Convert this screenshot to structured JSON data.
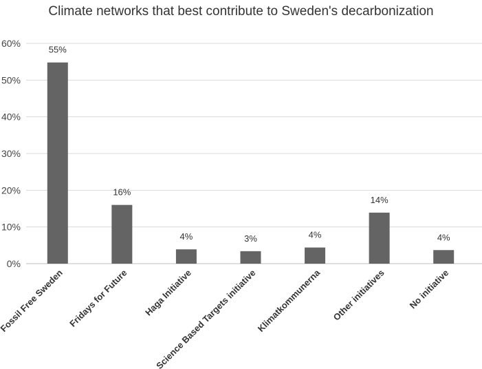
{
  "chart_data": {
    "type": "bar",
    "title": "Climate networks that best contribute to Sweden's decarbonization",
    "xlabel": "",
    "ylabel": "",
    "categories": [
      "Fossil Free Sweden",
      "Fridays for Future",
      "Haga Initiative",
      "Science Based Targets initiative",
      "Klimatkommunerna",
      "Other initiatives",
      "No initiative"
    ],
    "values": [
      54.8,
      16.0,
      3.9,
      3.4,
      4.4,
      13.9,
      3.7
    ],
    "data_labels": [
      "55%",
      "16%",
      "4%",
      "3%",
      "4%",
      "14%",
      "4%"
    ],
    "ylim": [
      0,
      60
    ],
    "yticks": [
      "0%",
      "10%",
      "20%",
      "30%",
      "40%",
      "50%",
      "60%"
    ],
    "grid": true,
    "legend": "none",
    "colors": {
      "bar": "#646464",
      "grid": "#d9d9d9"
    }
  }
}
